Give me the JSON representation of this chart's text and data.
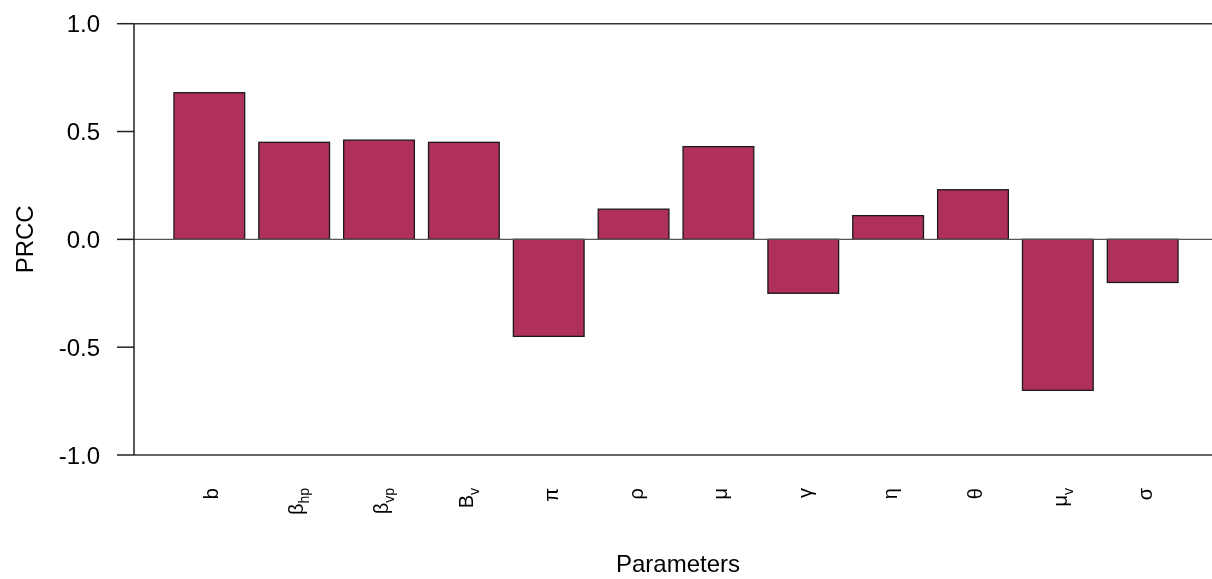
{
  "chart_data": {
    "type": "bar",
    "xlabel": "Parameters",
    "ylabel": "PRCC",
    "categories": [
      "b",
      "β$_{hp}$",
      "β$_{vp}$",
      "B$_{v}$",
      "π",
      "ρ",
      "μ",
      "γ",
      "η",
      "θ",
      "μ$_{v}$",
      "σ"
    ],
    "values": [
      0.68,
      0.45,
      0.46,
      0.45,
      -0.45,
      0.14,
      0.43,
      -0.25,
      0.11,
      0.23,
      -0.7,
      -0.2
    ],
    "color": "#af305c",
    "ylim": [
      -1,
      1
    ],
    "yticks": [
      {
        "value": -1,
        "label": "-1.0"
      },
      {
        "value": -0.5,
        "label": "-0.5"
      },
      {
        "value": 0,
        "label": "0.0"
      },
      {
        "value": 0.5,
        "label": "0.5"
      },
      {
        "value": 1,
        "label": "1.0"
      }
    ]
  }
}
